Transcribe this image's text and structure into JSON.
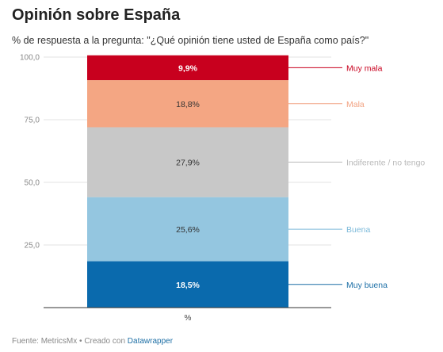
{
  "title": "Opinión sobre España",
  "subtitle": "% de respuesta a la pregunta: \"¿Qué opinión tiene usted de España como país?\"",
  "footer": {
    "source": "Fuente: MetricsMx",
    "separator": " • ",
    "created_with": "Creado con ",
    "tool": "Datawrapper"
  },
  "chart_data": {
    "type": "bar",
    "stacked": true,
    "categories": [
      "%"
    ],
    "ylim": [
      0,
      100
    ],
    "yticks": [
      "25,0",
      "50,0",
      "75,0",
      "100,0"
    ],
    "ytick_values": [
      25,
      50,
      75,
      100
    ],
    "grid": true,
    "legend": "right, labels aligned to segments",
    "series": [
      {
        "name": "Muy buena",
        "values": [
          18.5
        ],
        "label": "18,5%",
        "color": "#0a6aad",
        "label_color": "#ffffff",
        "bold": true
      },
      {
        "name": "Buena",
        "values": [
          25.6
        ],
        "label": "25,6%",
        "color": "#94c6e0",
        "label_color": "#333333",
        "bold": false
      },
      {
        "name": "Indiferente / no tengo",
        "values": [
          27.9
        ],
        "label": "27,9%",
        "color": "#c8c8c8",
        "label_color": "#333333",
        "bold": false
      },
      {
        "name": "Mala",
        "values": [
          18.8
        ],
        "label": "18,8%",
        "color": "#f4a683",
        "label_color": "#333333",
        "bold": false
      },
      {
        "name": "Muy mala",
        "values": [
          9.9
        ],
        "label": "9,9%",
        "color": "#c8001e",
        "label_color": "#ffffff",
        "bold": true
      }
    ],
    "legend_text_colors": [
      "#1b6ea6",
      "#7dbada",
      "#b9b9b9",
      "#f2a383",
      "#c8001e"
    ]
  }
}
